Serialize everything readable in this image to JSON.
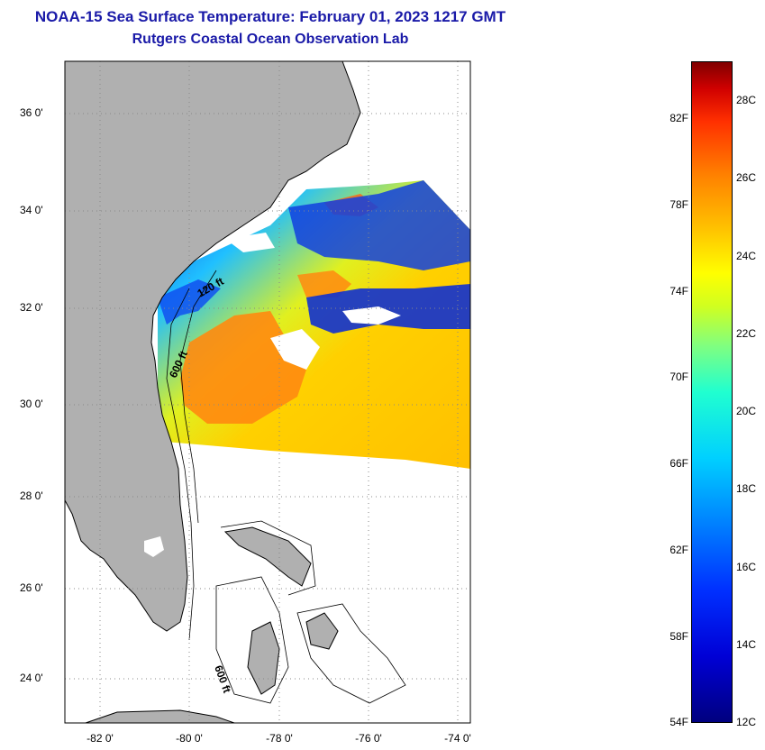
{
  "header": {
    "title": "NOAA-15 Sea Surface Temperature:  February 01, 2023 1217 GMT",
    "subtitle": "Rutgers Coastal Ocean Observation Lab"
  },
  "map": {
    "lat_labels": [
      "36 0'",
      "34 0'",
      "32 0'",
      "30 0'",
      "28 0'",
      "26 0'",
      "24 0'"
    ],
    "lon_labels": [
      "-82 0'",
      "-80 0'",
      "-78 0'",
      "-76 0'",
      "-74 0'"
    ],
    "contour_labels": [
      "120 ft",
      "600 ft",
      "600 ft"
    ],
    "colors": {
      "land": "#b0b0b0",
      "missing": "#ffffff",
      "grid": "#888888"
    }
  },
  "colorbar": {
    "fahrenheit": [
      "82F",
      "78F",
      "74F",
      "70F",
      "66F",
      "62F",
      "58F",
      "54F"
    ],
    "celsius": [
      "28C",
      "26C",
      "24C",
      "22C",
      "20C",
      "18C",
      "16C",
      "14C",
      "12C"
    ]
  }
}
